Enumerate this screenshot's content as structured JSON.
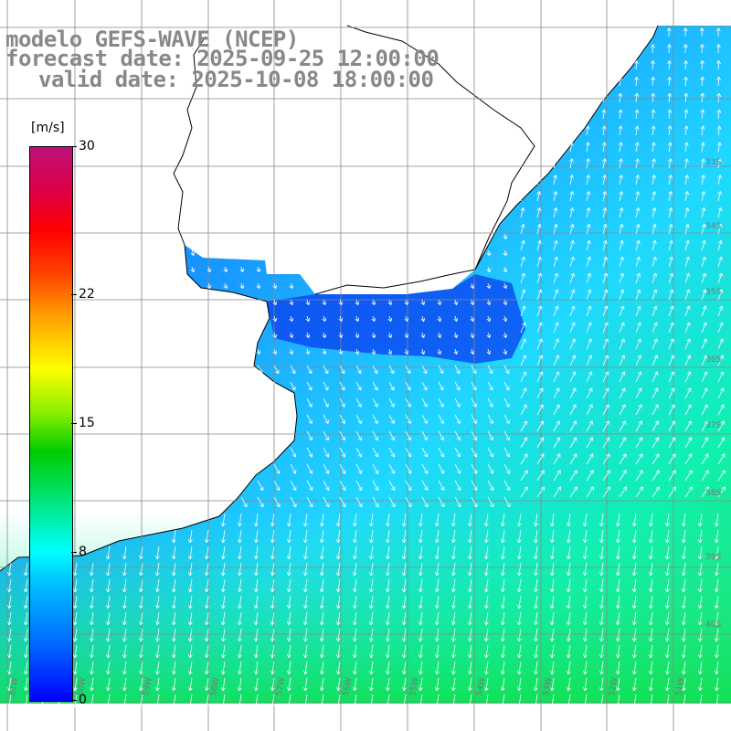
{
  "title": {
    "model": "modelo GEFS-WAVE (NCEP)",
    "forecast": "forecast date: 2025-09-25 12:00:00",
    "valid": "valid date: 2025-10-08 18:00:00"
  },
  "colorbar": {
    "unit": "[m/s]",
    "ticks": [
      "30",
      "22",
      "15",
      "8",
      "0"
    ],
    "tick_values": [
      30,
      22,
      15,
      8,
      0
    ],
    "min": 0,
    "max": 30,
    "colors": [
      "#0000ff",
      "#0066ff",
      "#00c8ff",
      "#00ffff",
      "#00e060",
      "#00cc00",
      "#88ee00",
      "#ffff00",
      "#ff9900",
      "#ff4400",
      "#ff0000",
      "#dd0044",
      "#c0107a"
    ]
  },
  "map": {
    "lat_labels": [
      "33S",
      "34S",
      "35S",
      "36S",
      "37S",
      "38S",
      "39S",
      "40S"
    ],
    "lon_labels": [
      "61W",
      "60W",
      "59W",
      "58W",
      "57W",
      "56W",
      "55W",
      "54W",
      "53W",
      "52W",
      "51W"
    ],
    "land_color": "#ffffff",
    "grid_color": "#888888",
    "arrow_color": "#ffffff"
  }
}
